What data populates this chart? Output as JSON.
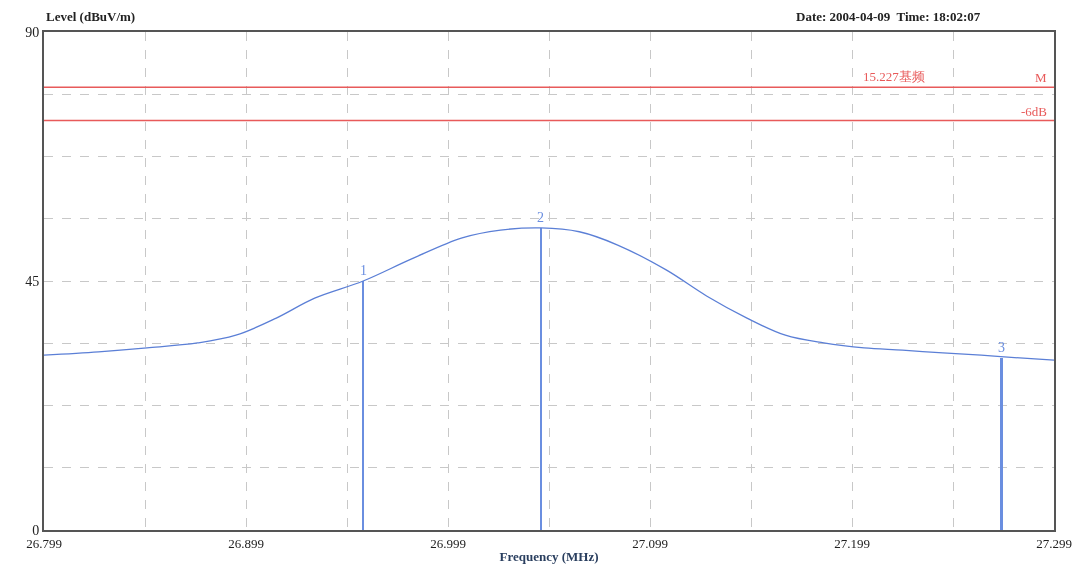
{
  "chart_data": {
    "type": "line",
    "ylabel": "Level (dBuV/m)",
    "xlabel": "Frequency (MHz)",
    "xlim": [
      26.799,
      27.299
    ],
    "xticks": [
      26.799,
      {
        "value": 26.849,
        "label": null
      },
      26.899,
      {
        "value": 26.949,
        "label": null
      },
      26.999,
      {
        "value": 27.049,
        "label": null
      },
      27.099,
      {
        "value": 27.149,
        "label": null
      },
      27.199,
      {
        "value": 27.249,
        "label": null
      },
      27.299
    ],
    "ylim": [
      0,
      90
    ],
    "yticks": [
      0,
      {
        "value": 11.25,
        "label": null
      },
      {
        "value": 22.5,
        "label": null
      },
      {
        "value": 33.75,
        "label": null
      },
      45,
      {
        "value": 56.25,
        "label": null
      },
      {
        "value": 67.5,
        "label": null
      },
      {
        "value": 78.75,
        "label": null
      },
      90
    ],
    "grid": true,
    "line_style": "solid",
    "series": [
      {
        "color": "#5b7fd6",
        "x": [
          26.799,
          26.826,
          26.85,
          26.875,
          26.894,
          26.914,
          26.933,
          26.957,
          26.981,
          27.006,
          27.025,
          27.045,
          27.064,
          27.083,
          27.107,
          27.127,
          27.147,
          27.166,
          27.185,
          27.205,
          27.224,
          27.244,
          27.263,
          27.282,
          27.299
        ],
        "values": [
          31.6,
          32.2,
          32.9,
          33.8,
          35.2,
          38.3,
          41.9,
          45.0,
          49.0,
          52.8,
          54.2,
          54.6,
          53.9,
          51.5,
          47.0,
          42.3,
          38.3,
          35.2,
          33.8,
          32.9,
          32.5,
          32.0,
          31.6,
          31.1,
          30.7
        ]
      },
      {
        "type": "bar",
        "color": "#6a8ee0",
        "x": [
          26.957,
          27.045,
          27.273
        ],
        "values": [
          45.0,
          54.6,
          31.1
        ]
      }
    ],
    "ref_lines": [
      {
        "axis": "y",
        "value": 80,
        "label": "M",
        "color": "#e85a5a"
      },
      {
        "axis": "y",
        "value": 74,
        "label": "-6dB",
        "color": "#e85a5a"
      }
    ],
    "annotations": [
      {
        "text": "15.227基频",
        "x": 27.22,
        "y": 80
      },
      {
        "text": "1",
        "x": 26.957,
        "y": 45.0
      },
      {
        "text": "2",
        "x": 27.045,
        "y": 54.6
      },
      {
        "text": "3",
        "x": 27.273,
        "y": 31.1
      },
      "Date: 2004-04-09  Time: 18:02:07"
    ]
  }
}
